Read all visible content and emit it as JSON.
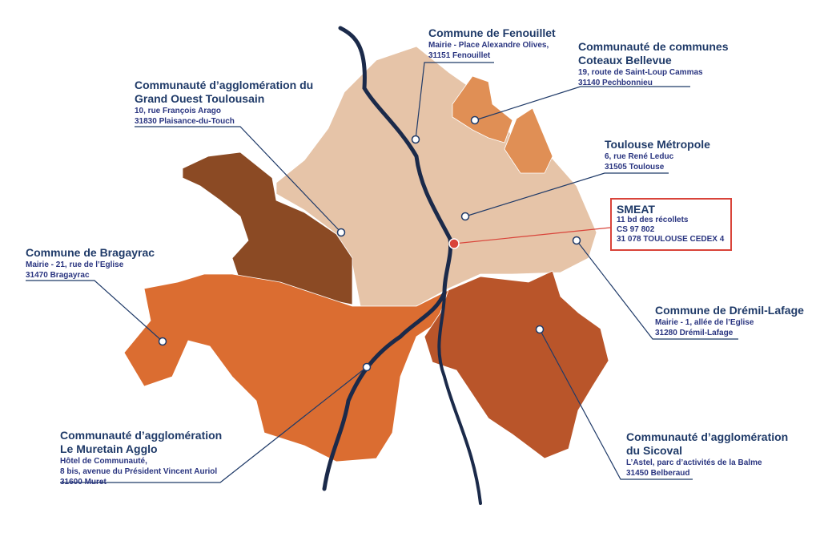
{
  "colors": {
    "toulouse_metropole": "#e6c4a8",
    "coteaux_bellevue": "#e08f55",
    "grand_ouest": "#8b4a24",
    "muretain": "#db6d31",
    "sicoval": "#b9552a",
    "river": "#1b2a4a",
    "label": "#1f3a68",
    "smeat": "#d9443a"
  },
  "labels": {
    "fenouillet": {
      "title": [
        "Commune de Fenouillet"
      ],
      "address": [
        "Mairie - Place Alexandre Olives,",
        "31151 Fenouillet"
      ]
    },
    "coteaux": {
      "title": [
        "Communauté de communes",
        "Coteaux Bellevue"
      ],
      "address": [
        "19, route de Saint-Loup Cammas",
        "31140 Pechbonnieu"
      ]
    },
    "grand_ouest": {
      "title": [
        "Communauté d’agglomération du",
        "Grand Ouest Toulousain"
      ],
      "address": [
        "10, rue François Arago",
        "31830 Plaisance-du-Touch"
      ]
    },
    "toulouse": {
      "title": [
        "Toulouse Métropole"
      ],
      "address": [
        "6, rue René Leduc",
        "31505 Toulouse"
      ]
    },
    "smeat": {
      "title": [
        "SMEAT"
      ],
      "address": [
        "11 bd des récollets",
        "CS 97 802",
        "31 078 TOULOUSE CEDEX 4"
      ]
    },
    "dremil": {
      "title": [
        "Commune de Drémil-Lafage"
      ],
      "address": [
        "Mairie - 1, allée de l’Eglise",
        "31280 Drémil-Lafage"
      ]
    },
    "bragayrac": {
      "title": [
        "Commune de Bragayrac"
      ],
      "address": [
        "Mairie - 21, rue de l’Eglise",
        "31470 Bragayrac"
      ]
    },
    "muretain": {
      "title": [
        "Communauté d’agglomération",
        "Le Muretain Agglo"
      ],
      "address": [
        "Hôtel de Communauté,",
        "8 bis, avenue du Président Vincent Auriol",
        "31600 Muret"
      ]
    },
    "sicoval": {
      "title": [
        "Communauté d’agglomération",
        "du Sicoval"
      ],
      "address": [
        "L’Astel, parc d’activités de la Balme",
        "31450 Belberaud"
      ]
    }
  }
}
